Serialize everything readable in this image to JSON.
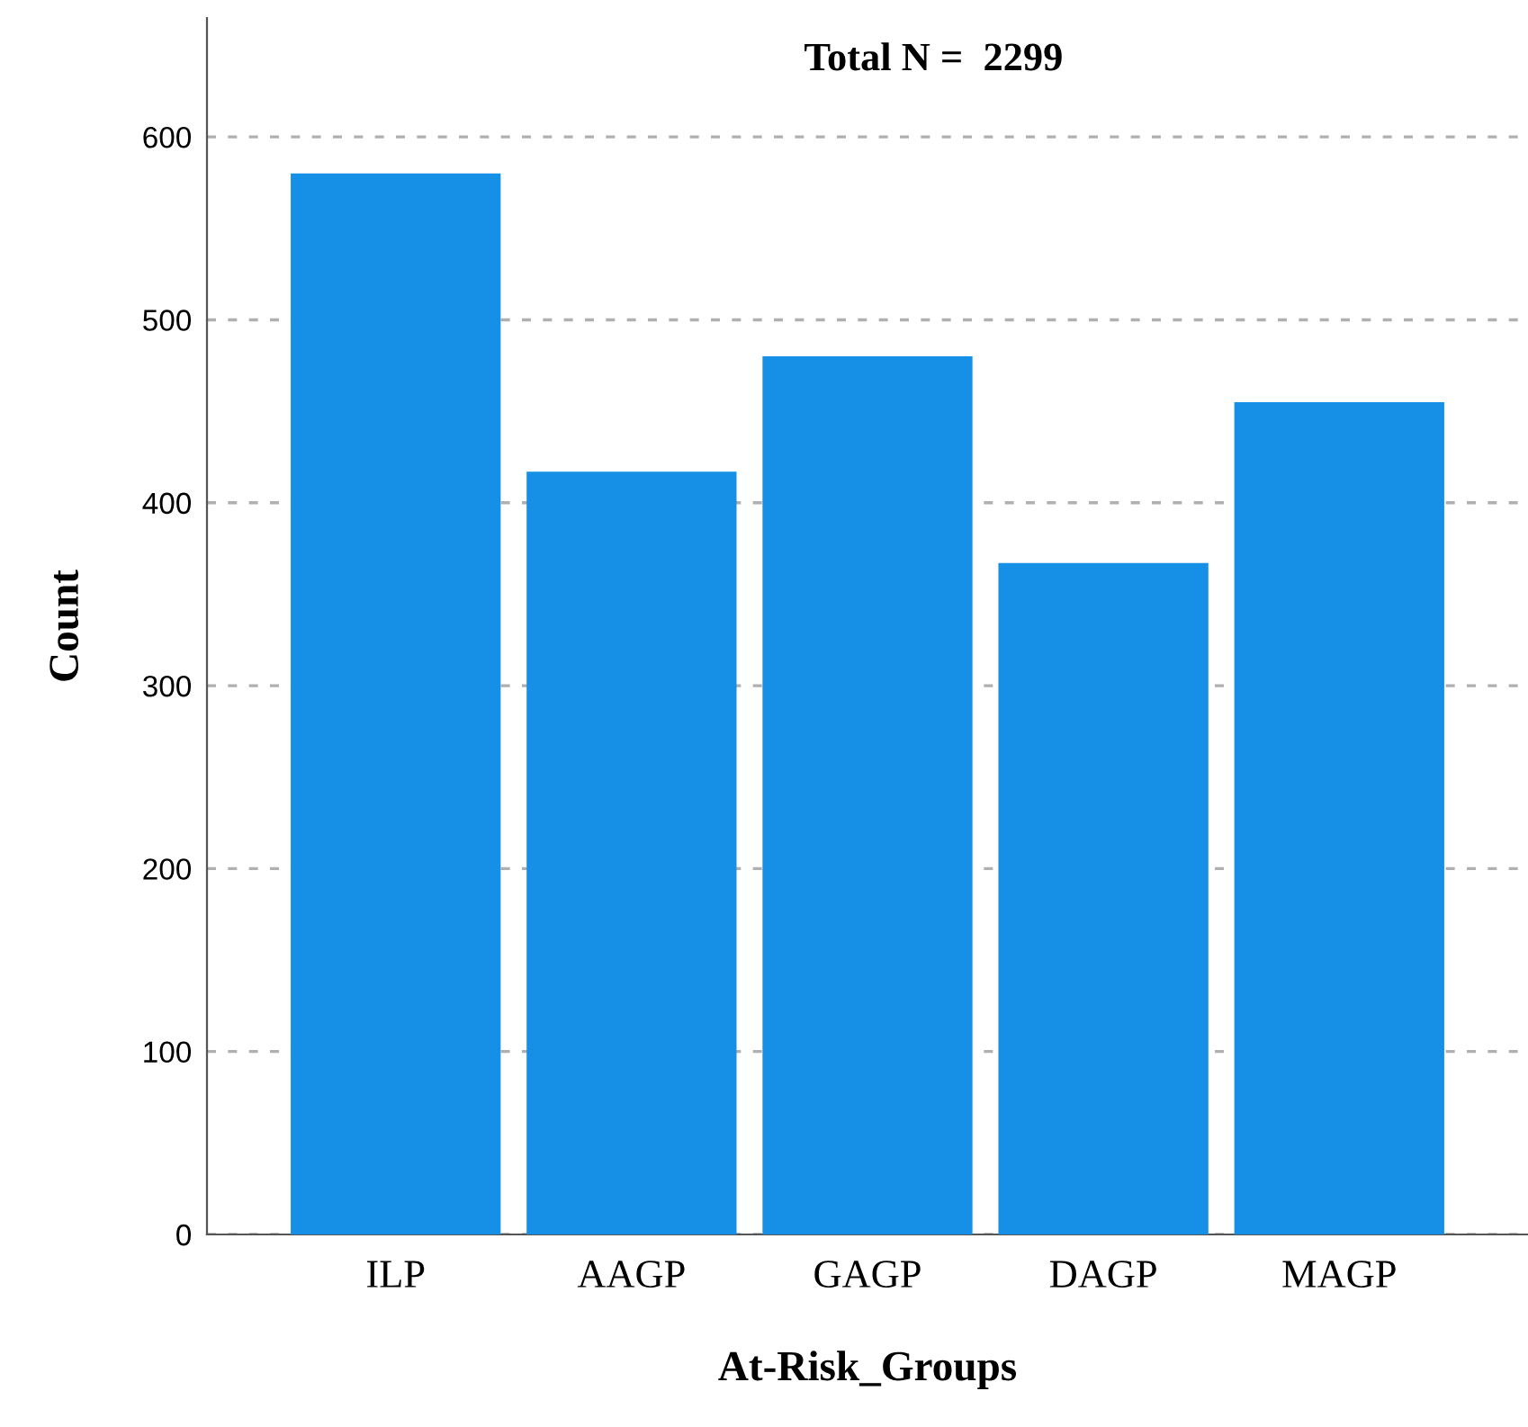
{
  "chart_data": {
    "type": "bar",
    "xlabel": "At-Risk_Groups",
    "ylabel": "Count",
    "categories": [
      "ILP",
      "AAGP",
      "GAGP",
      "DAGP",
      "MAGP"
    ],
    "values": [
      580,
      417,
      480,
      367,
      455
    ],
    "color": "#1590e6",
    "ylim": [
      0,
      665
    ],
    "yticks": [
      0,
      100,
      200,
      300,
      400,
      500,
      600
    ],
    "grid": "y",
    "annotations": [
      "Total N =  2299"
    ]
  }
}
